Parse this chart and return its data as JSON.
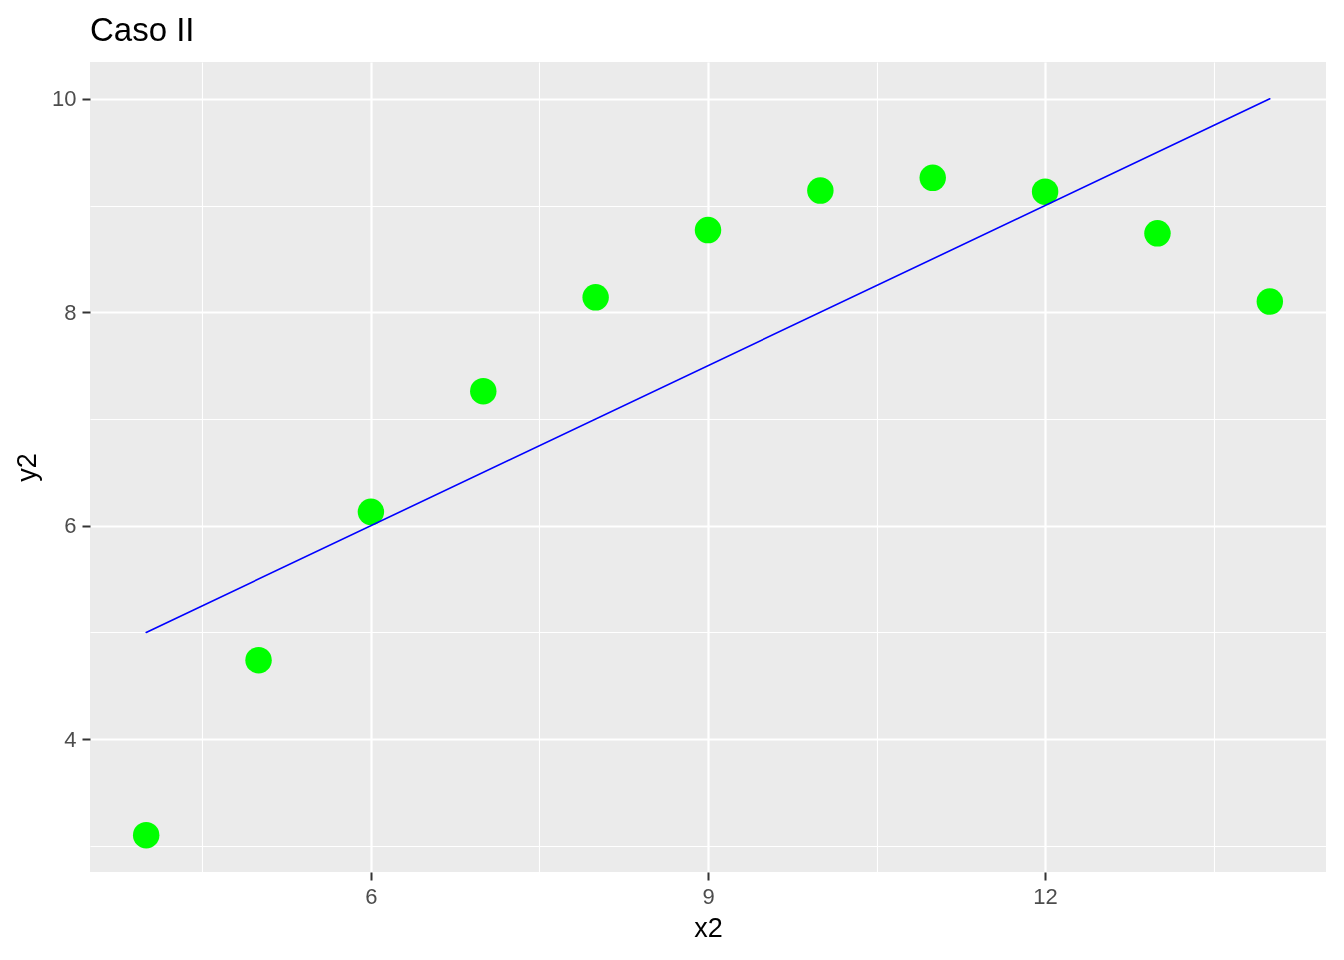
{
  "chart_data": {
    "type": "scatter",
    "title": "Caso II",
    "xlabel": "x2",
    "ylabel": "y2",
    "xlim": [
      3.5,
      14.5
    ],
    "ylim": [
      2.755,
      10.345
    ],
    "xticks": [
      {
        "value": 4.5,
        "label": null
      },
      6,
      {
        "value": 7.5,
        "label": null
      },
      9,
      {
        "value": 10.5,
        "label": null
      },
      12,
      {
        "value": 13.5,
        "label": null
      }
    ],
    "yticks": [
      {
        "value": 3,
        "label": null
      },
      4,
      {
        "value": 5,
        "label": null
      },
      6,
      {
        "value": 7,
        "label": null
      },
      8,
      {
        "value": 9,
        "label": null
      },
      10
    ],
    "grid": true,
    "series": [
      {
        "color": "#00ff00",
        "marker": "circle",
        "x": [
          4,
          5,
          6,
          7,
          8,
          9,
          10,
          11,
          12,
          13,
          14
        ],
        "values": [
          3.1,
          4.74,
          6.13,
          7.26,
          8.14,
          8.77,
          9.14,
          9.26,
          9.13,
          8.74,
          8.1
        ]
      },
      {
        "type": "line",
        "color": "#0000ff",
        "x": [
          4,
          14
        ],
        "values": [
          5,
          10
        ]
      }
    ]
  }
}
